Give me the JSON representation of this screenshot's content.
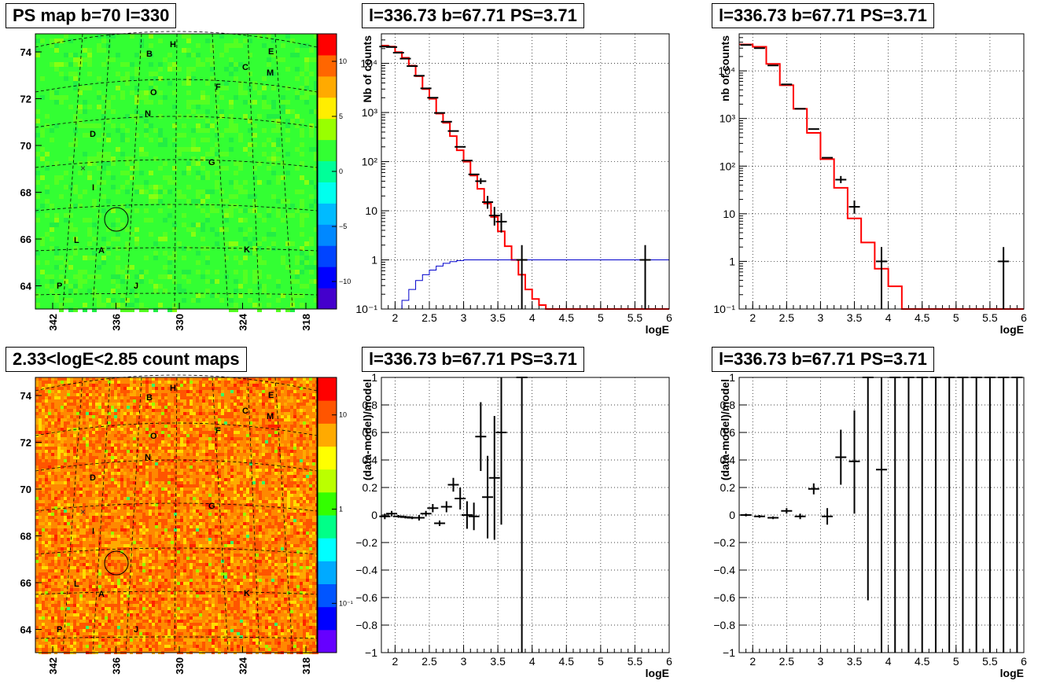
{
  "colors": {
    "model_line": "#ff0000",
    "data_points": "#000000",
    "aux_line": "#0000cc"
  },
  "map_panels": [
    {
      "title": "PS map b=70 l=330",
      "colorbar_ticks": [
        "10",
        "5",
        "0",
        "−5",
        "−10"
      ],
      "colorbar_values": [
        10,
        5,
        0,
        -5,
        -10
      ],
      "colorbar_range": [
        -12.5,
        12.5
      ],
      "colorbar_scale": "linear",
      "yticks": [
        "74",
        "72",
        "70",
        "68",
        "66",
        "64"
      ],
      "xticks": [
        "342",
        "336",
        "330",
        "324",
        "318"
      ],
      "background": "green"
    },
    {
      "title": "2.33<logE<2.85 count maps",
      "colorbar_ticks": [
        "10",
        "1",
        "10⁻¹"
      ],
      "colorbar_values": [
        10,
        1,
        0.1
      ],
      "colorbar_range": [
        0.03,
        25
      ],
      "colorbar_scale": "log",
      "yticks": [
        "74",
        "72",
        "70",
        "68",
        "66",
        "64"
      ],
      "xticks": [
        "342",
        "336",
        "330",
        "324",
        "318"
      ],
      "background": "orange"
    }
  ],
  "source_labels": [
    "B",
    "H",
    "E",
    "C",
    "M",
    "O",
    "F",
    "N",
    "D",
    "G",
    "I",
    "L",
    "A",
    "K",
    "P",
    "J"
  ],
  "chart_data": [
    {
      "type": "line",
      "title": "l=336.73 b=67.71 PS=3.71",
      "xlabel": "logE",
      "ylabel": "Nb of counts",
      "yscale": "log",
      "xlim": [
        1.8,
        6.0
      ],
      "ylim": [
        0.1,
        40000
      ],
      "grid": true,
      "xticks": [
        "2",
        "2.5",
        "3",
        "3.5",
        "4",
        "4.5",
        "5",
        "5.5",
        "6"
      ],
      "yticks": [
        "10⁻¹",
        "1",
        "10",
        "10²",
        "10³",
        "10⁴"
      ],
      "series": [
        {
          "style": "step",
          "x": [
            1.8,
            1.9,
            2.0,
            2.1,
            2.2,
            2.3,
            2.4,
            2.5,
            2.6,
            2.7,
            2.8,
            2.9,
            3.0,
            3.1,
            3.2,
            3.3,
            3.4,
            3.5,
            3.6,
            3.7,
            3.8,
            3.9,
            4.0,
            4.1,
            4.2,
            4.3,
            6.0
          ],
          "values": [
            23000,
            22000,
            17000,
            13000,
            9000,
            5500,
            3000,
            1900,
            950,
            620,
            330,
            170,
            100,
            52,
            28,
            14,
            7.5,
            3.8,
            1.9,
            1.0,
            0.5,
            0.25,
            0.16,
            0.12,
            0.1,
            0.1,
            0.1
          ]
        },
        {
          "style": "step",
          "x": [
            1.8,
            2.0,
            2.1,
            2.2,
            2.3,
            2.4,
            2.5,
            2.6,
            2.7,
            2.8,
            2.9,
            3.0,
            3.1,
            3.2,
            3.3,
            6.0
          ],
          "values": [
            0.1,
            0.1,
            0.15,
            0.25,
            0.38,
            0.5,
            0.62,
            0.75,
            0.85,
            0.92,
            0.97,
            1.0,
            1.0,
            1.0,
            1.0,
            1.0
          ]
        },
        {
          "style": "errorbar",
          "x": [
            1.85,
            1.95,
            2.05,
            2.15,
            2.25,
            2.35,
            2.45,
            2.55,
            2.65,
            2.75,
            2.85,
            2.95,
            3.05,
            3.15,
            3.25,
            3.35,
            3.45,
            3.55,
            3.85,
            5.65
          ],
          "values": [
            22000,
            21500,
            16500,
            12500,
            8800,
            5600,
            3100,
            2000,
            980,
            650,
            420,
            200,
            105,
            55,
            40,
            15,
            8,
            6,
            1,
            1
          ],
          "yerr_low": [
            0,
            0,
            0,
            0,
            0,
            0,
            0,
            0,
            0,
            0,
            0,
            0,
            0,
            0,
            5,
            4,
            3,
            2.4,
            0.9,
            0.9
          ],
          "yerr_high": [
            0,
            0,
            0,
            0,
            0,
            0,
            0,
            0,
            0,
            0,
            0,
            0,
            0,
            0,
            6,
            5,
            4,
            3,
            1,
            1
          ]
        }
      ]
    },
    {
      "type": "line",
      "title": "l=336.73 b=67.71 PS=3.71",
      "xlabel": "logE",
      "ylabel": "nb of counts",
      "yscale": "log",
      "xlim": [
        1.8,
        6.0
      ],
      "ylim": [
        0.1,
        60000
      ],
      "grid": true,
      "xticks": [
        "2",
        "2.5",
        "3",
        "3.5",
        "4",
        "4.5",
        "5",
        "5.5",
        "6"
      ],
      "yticks": [
        "10⁻¹",
        "1",
        "10",
        "10²",
        "10³",
        "10⁴"
      ],
      "series": [
        {
          "style": "step",
          "x": [
            1.8,
            2.0,
            2.2,
            2.4,
            2.6,
            2.8,
            3.0,
            3.2,
            3.4,
            3.6,
            3.8,
            4.0,
            4.2,
            6.0
          ],
          "values": [
            36000,
            32000,
            14000,
            5000,
            1600,
            500,
            140,
            35,
            8,
            2.5,
            0.7,
            0.3,
            0.1,
            0.1
          ]
        },
        {
          "style": "errorbar",
          "x": [
            1.9,
            2.1,
            2.3,
            2.5,
            2.7,
            2.9,
            3.1,
            3.3,
            3.5,
            3.9,
            5.7
          ],
          "values": [
            35000,
            30000,
            13000,
            5200,
            1600,
            600,
            150,
            52,
            14,
            1,
            1
          ],
          "yerr_low": [
            0,
            0,
            0,
            0,
            0,
            0,
            0,
            8,
            4,
            0.9,
            0.9
          ],
          "yerr_high": [
            0,
            0,
            0,
            0,
            0,
            0,
            0,
            10,
            5,
            1,
            1
          ]
        }
      ]
    },
    {
      "type": "scatter",
      "title": "l=336.73 b=67.71 PS=3.71",
      "xlabel": "logE",
      "ylabel": "(data-model)/model",
      "xlim": [
        1.8,
        6.0
      ],
      "ylim": [
        -1,
        1
      ],
      "grid": true,
      "xticks": [
        "2",
        "2.5",
        "3",
        "3.5",
        "4",
        "4.5",
        "5",
        "5.5",
        "6"
      ],
      "yticks": [
        "−1",
        "−0.8",
        "−0.6",
        "−0.4",
        "−0.2",
        "0",
        "0.2",
        "0.4",
        "0.6",
        "0.8",
        "1"
      ],
      "series": [
        {
          "style": "errorbar",
          "x": [
            1.85,
            1.95,
            2.05,
            2.15,
            2.25,
            2.35,
            2.45,
            2.55,
            2.65,
            2.75,
            2.85,
            2.95,
            3.05,
            3.15,
            3.25,
            3.35,
            3.45,
            3.55,
            3.85
          ],
          "values": [
            -0.01,
            0.01,
            -0.01,
            -0.015,
            -0.02,
            -0.02,
            0.01,
            0.05,
            -0.06,
            0.06,
            0.22,
            0.12,
            0.0,
            -0.01,
            0.57,
            0.13,
            0.27,
            0.6,
            1.0
          ],
          "yerr_low": [
            0.02,
            0.02,
            0.01,
            0.01,
            0.01,
            0.02,
            0.02,
            0.03,
            0.02,
            0.04,
            0.05,
            0.08,
            0.1,
            0.1,
            0.25,
            0.3,
            0.45,
            0.67,
            2.0
          ],
          "yerr_high": [
            0.02,
            0.02,
            0.01,
            0.01,
            0.01,
            0.02,
            0.02,
            0.03,
            0.02,
            0.04,
            0.05,
            0.08,
            0.1,
            0.1,
            0.25,
            0.3,
            0.45,
            0.4,
            0.0
          ]
        }
      ]
    },
    {
      "type": "scatter",
      "title": "l=336.73 b=67.71 PS=3.71",
      "xlabel": "logE",
      "ylabel": "(data-model)/model",
      "xlim": [
        1.8,
        6.0
      ],
      "ylim": [
        -1,
        1
      ],
      "grid": true,
      "xticks": [
        "2",
        "2.5",
        "3",
        "3.5",
        "4",
        "4.5",
        "5",
        "5.5",
        "6"
      ],
      "yticks": [
        "−1",
        "−0.8",
        "−0.6",
        "−0.4",
        "−0.2",
        "0",
        "0.2",
        "0.4",
        "0.6",
        "0.8",
        "1"
      ],
      "series": [
        {
          "style": "errorbar",
          "x": [
            1.9,
            2.1,
            2.3,
            2.5,
            2.7,
            2.9,
            3.1,
            3.3,
            3.5,
            3.9
          ],
          "values": [
            0.0,
            -0.01,
            -0.02,
            0.03,
            -0.01,
            0.19,
            -0.01,
            0.42,
            0.39,
            0.33
          ],
          "yerr_low": [
            0.01,
            0.01,
            0.01,
            0.02,
            0.02,
            0.04,
            0.06,
            0.2,
            0.38,
            1.33
          ],
          "yerr_high": [
            0.01,
            0.01,
            0.01,
            0.02,
            0.02,
            0.04,
            0.06,
            0.2,
            0.37,
            0.67
          ]
        },
        {
          "style": "errorbar",
          "x": [
            3.7,
            4.1,
            4.3,
            4.5,
            4.7,
            4.9,
            5.1,
            5.3,
            5.5,
            5.7,
            5.9
          ],
          "values": [
            1.0,
            1.0,
            1.0,
            1.0,
            1.0,
            1.0,
            1.0,
            1.0,
            1.0,
            1.0,
            1.0
          ],
          "yerr_low": [
            1.62,
            2.0,
            2.0,
            2.0,
            2.0,
            2.0,
            2.0,
            2.0,
            2.0,
            2.0,
            2.0
          ],
          "yerr_high": [
            0,
            0,
            0,
            0,
            0,
            0,
            0,
            0,
            0,
            0,
            0
          ]
        }
      ]
    }
  ]
}
